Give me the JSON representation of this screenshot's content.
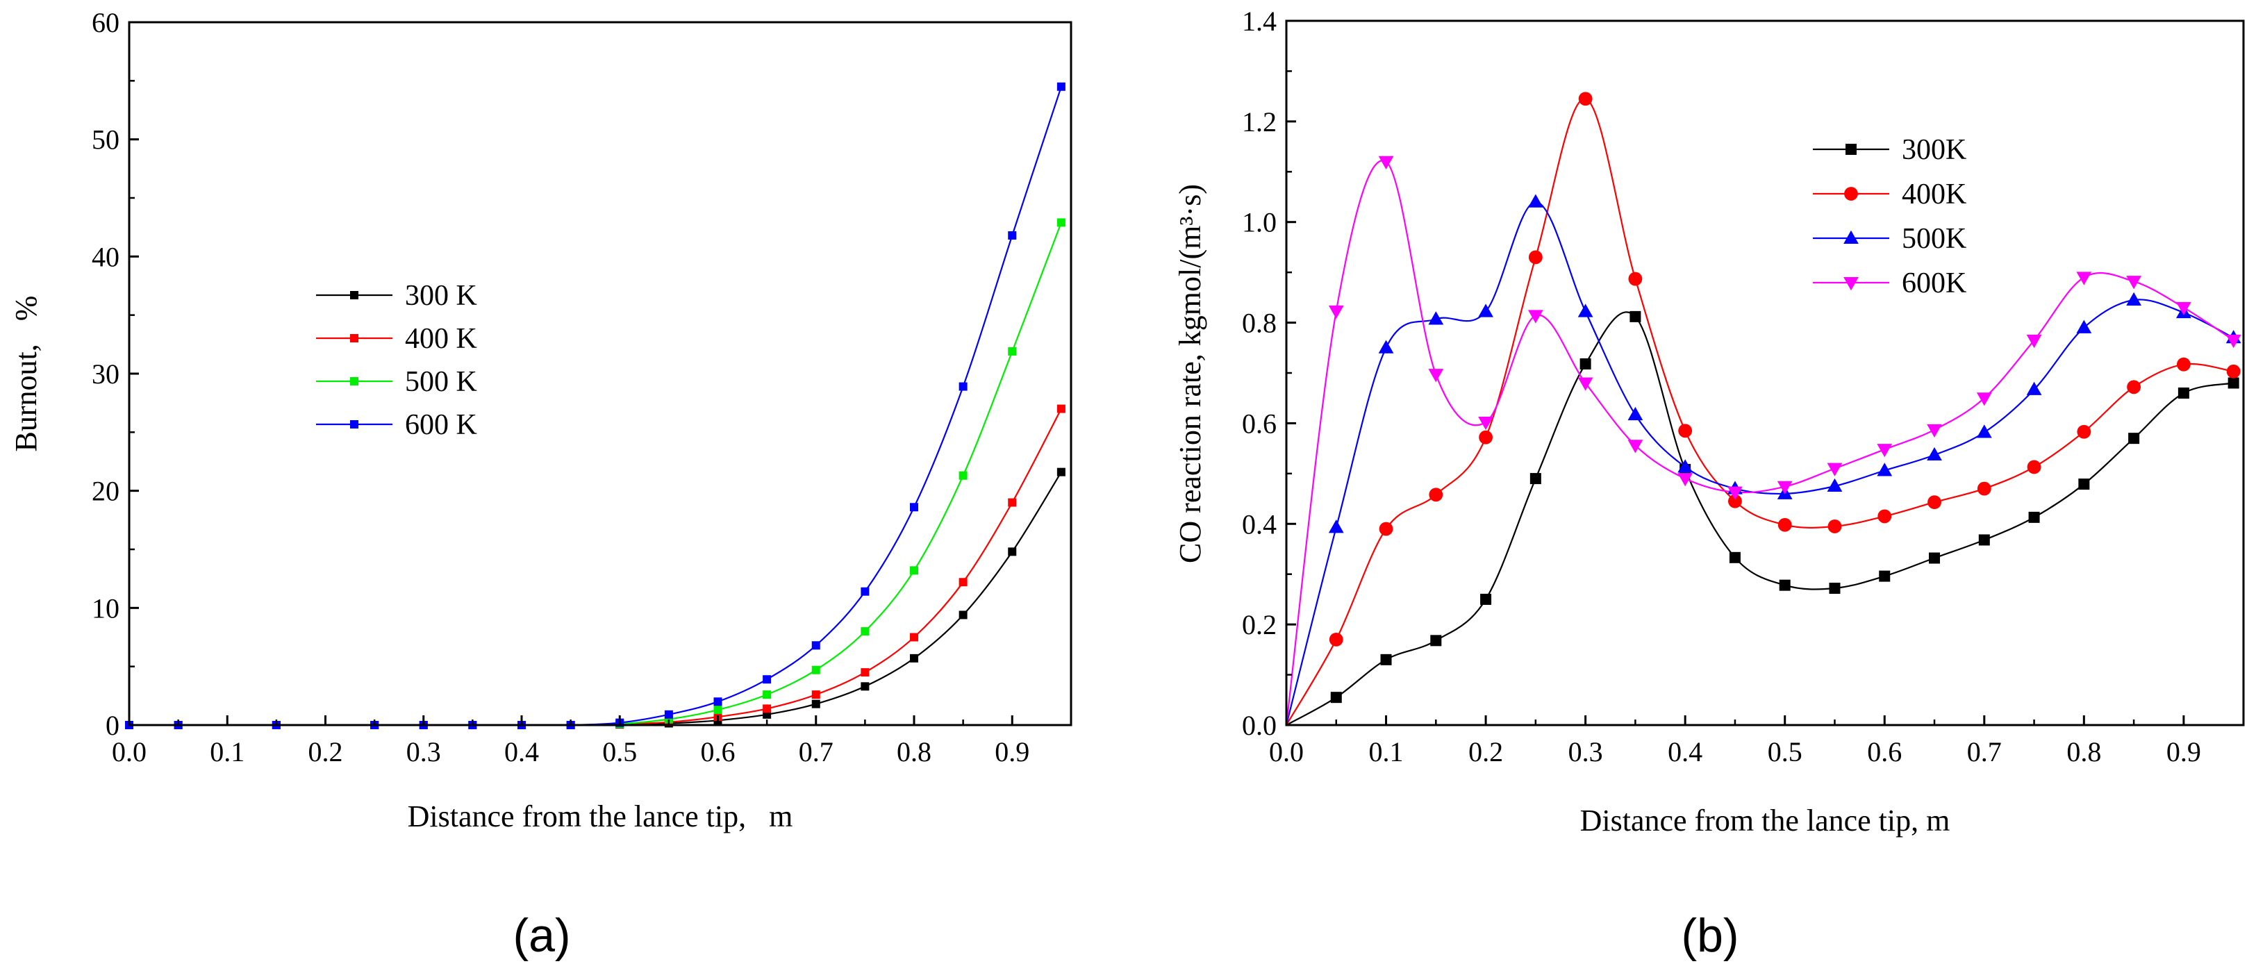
{
  "chart_data": [
    {
      "panel": "(a)",
      "type": "line",
      "title": "",
      "xlabel": "Distance from the lance tip,   m",
      "ylabel": "Burnout,   %",
      "xlim": [
        0,
        0.96
      ],
      "ylim": [
        0,
        60
      ],
      "xticks": [
        0.0,
        0.1,
        0.2,
        0.3,
        0.4,
        0.5,
        0.6,
        0.7,
        0.8,
        0.9
      ],
      "xtick_labels": [
        "0.0",
        "0.1",
        "0.2",
        "0.3",
        "0.4",
        "0.5",
        "0.6",
        "0.7",
        "0.8",
        "0.9"
      ],
      "yticks": [
        0,
        10,
        20,
        30,
        40,
        50,
        60
      ],
      "ytick_labels": [
        "0",
        "10",
        "20",
        "30",
        "40",
        "50",
        "60"
      ],
      "grid": false,
      "legend_position": "center-left",
      "x": [
        0.0,
        0.05,
        0.15,
        0.25,
        0.3,
        0.35,
        0.4,
        0.45,
        0.5,
        0.55,
        0.6,
        0.65,
        0.7,
        0.75,
        0.8,
        0.85,
        0.9,
        0.95
      ],
      "series": [
        {
          "name": "300 K",
          "color": "#000000",
          "marker": "square",
          "values": [
            0,
            0,
            0,
            0,
            0,
            0,
            0,
            0,
            0.05,
            0.15,
            0.4,
            0.9,
            1.8,
            3.3,
            5.7,
            9.4,
            14.8,
            21.6
          ]
        },
        {
          "name": "400 K",
          "color": "#ff0000",
          "marker": "square",
          "values": [
            0,
            0,
            0,
            0,
            0,
            0,
            0,
            0,
            0.08,
            0.25,
            0.7,
            1.4,
            2.6,
            4.5,
            7.5,
            12.2,
            19.0,
            27.0
          ]
        },
        {
          "name": "500 K",
          "color": "#00ee00",
          "marker": "square",
          "values": [
            0,
            0,
            0,
            0,
            0,
            0,
            0,
            0,
            0.1,
            0.5,
            1.3,
            2.6,
            4.7,
            8.0,
            13.2,
            21.3,
            31.9,
            42.9
          ]
        },
        {
          "name": "600 K",
          "color": "#0000ff",
          "marker": "square",
          "values": [
            0,
            0,
            0,
            0,
            0,
            0,
            0,
            0,
            0.2,
            0.9,
            2.0,
            3.9,
            6.8,
            11.4,
            18.6,
            28.9,
            41.8,
            54.5
          ]
        }
      ]
    },
    {
      "panel": "(b)",
      "type": "line",
      "title": "",
      "xlabel": "Distance from the lance tip, m",
      "ylabel": "CO reaction rate, kgmol/(m³·s)",
      "xlim": [
        0,
        0.96
      ],
      "ylim": [
        0,
        1.4
      ],
      "xticks": [
        0.0,
        0.1,
        0.2,
        0.3,
        0.4,
        0.5,
        0.6,
        0.7,
        0.8,
        0.9
      ],
      "xtick_labels": [
        "0.0",
        "0.1",
        "0.2",
        "0.3",
        "0.4",
        "0.5",
        "0.6",
        "0.7",
        "0.8",
        "0.9"
      ],
      "yticks": [
        0,
        0.2,
        0.4,
        0.6,
        0.8,
        1.0,
        1.2,
        1.4
      ],
      "ytick_labels": [
        "0.0",
        "0.2",
        "0.4",
        "0.6",
        "0.8",
        "1.0",
        "1.2",
        "1.4"
      ],
      "grid": false,
      "legend_position": "top-right",
      "x": [
        0.0,
        0.05,
        0.1,
        0.15,
        0.2,
        0.25,
        0.3,
        0.35,
        0.4,
        0.45,
        0.5,
        0.55,
        0.6,
        0.65,
        0.7,
        0.75,
        0.8,
        0.85,
        0.9,
        0.95
      ],
      "series": [
        {
          "name": "300K",
          "color": "#000000",
          "marker": "square",
          "values": [
            0.0,
            0.055,
            0.13,
            0.168,
            0.25,
            0.49,
            0.718,
            0.812,
            0.508,
            0.333,
            0.278,
            0.272,
            0.296,
            0.332,
            0.368,
            0.413,
            0.479,
            0.57,
            0.66,
            0.68
          ]
        },
        {
          "name": "400K",
          "color": "#ff0000",
          "marker": "circle",
          "values": [
            0.0,
            0.17,
            0.39,
            0.458,
            0.572,
            0.93,
            1.245,
            0.887,
            0.585,
            0.445,
            0.398,
            0.395,
            0.415,
            0.443,
            0.47,
            0.513,
            0.583,
            0.672,
            0.717,
            0.703
          ]
        },
        {
          "name": "500K",
          "color": "#0000ff",
          "marker": "triangle-up",
          "values": [
            0.0,
            0.393,
            0.75,
            0.807,
            0.822,
            1.04,
            0.822,
            0.617,
            0.513,
            0.47,
            0.46,
            0.475,
            0.506,
            0.537,
            0.582,
            0.667,
            0.79,
            0.845,
            0.82,
            0.77
          ]
        },
        {
          "name": "600K",
          "color": "#ff00ff",
          "marker": "triangle-down",
          "values": [
            0.0,
            0.823,
            1.12,
            0.697,
            0.602,
            0.814,
            0.68,
            0.556,
            0.49,
            0.463,
            0.474,
            0.51,
            0.548,
            0.587,
            0.65,
            0.765,
            0.89,
            0.882,
            0.83,
            0.765
          ]
        }
      ]
    }
  ]
}
